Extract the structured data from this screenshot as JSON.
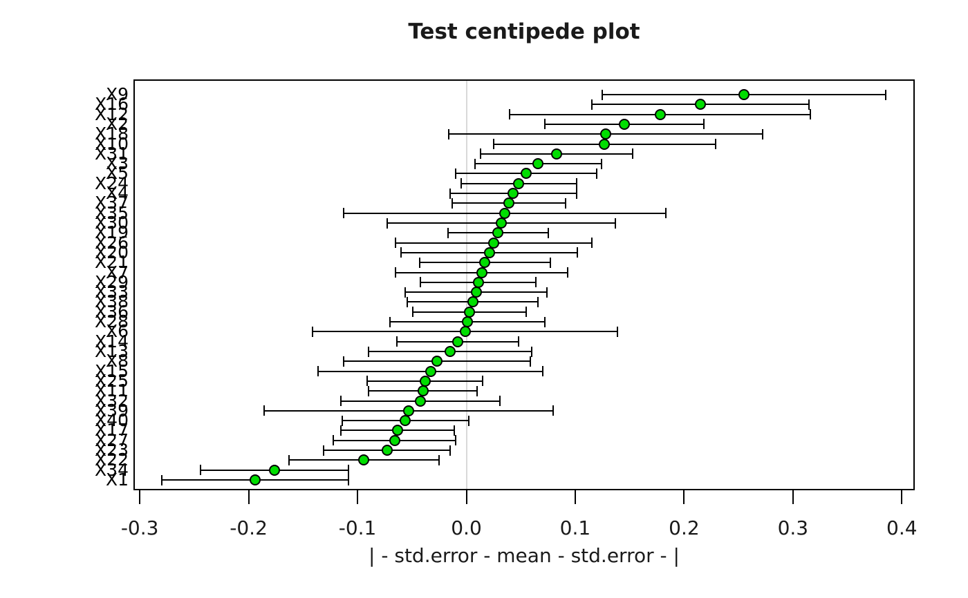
{
  "figure": {
    "title": "Test centipede plot"
  },
  "chart_data": {
    "type": "scatter",
    "subtype": "centipede-plot-means-with-error-bars",
    "title": "Test centipede plot",
    "xlabel": "| - std.error - mean - std.error - |",
    "ylabel": "",
    "xlim": [
      -0.306,
      0.412
    ],
    "x_tick_values": [
      -0.3,
      -0.2,
      -0.1,
      0.0,
      0.1,
      0.2,
      0.3,
      0.4
    ],
    "x_tick_labels": [
      "-0.3",
      "-0.2",
      "-0.1",
      "0.0",
      "0.1",
      "0.2",
      "0.3",
      "0.4"
    ],
    "grid": {
      "vertical_line_at_zero": true,
      "horizontal": false
    },
    "legend": {
      "shown": false
    },
    "colors": {
      "point_fill": "#00dd00",
      "point_stroke": "#000000",
      "error_bar": "#000000",
      "zero_line": "#d9d9d9",
      "text": "#000000"
    },
    "categories": [
      "X9",
      "X16",
      "X12",
      "X2",
      "X18",
      "X10",
      "X31",
      "X3",
      "X5",
      "X24",
      "X4",
      "X37",
      "X35",
      "X30",
      "X19",
      "X26",
      "X20",
      "X21",
      "X7",
      "X29",
      "X33",
      "X38",
      "X36",
      "X28",
      "X6",
      "X14",
      "X13",
      "X8",
      "X15",
      "X25",
      "X11",
      "X32",
      "X39",
      "X40",
      "X17",
      "X27",
      "X23",
      "X22",
      "X34",
      "X1"
    ],
    "series": [
      {
        "name": "mean",
        "values": [
          0.255,
          0.215,
          0.178,
          0.145,
          0.128,
          0.127,
          0.083,
          0.066,
          0.055,
          0.048,
          0.043,
          0.039,
          0.035,
          0.032,
          0.029,
          0.025,
          0.021,
          0.017,
          0.014,
          0.011,
          0.009,
          0.006,
          0.003,
          0.001,
          -0.001,
          -0.008,
          -0.015,
          -0.027,
          -0.033,
          -0.038,
          -0.04,
          -0.042,
          -0.053,
          -0.056,
          -0.063,
          -0.066,
          -0.073,
          -0.094,
          -0.176,
          -0.194
        ]
      },
      {
        "name": "std.error",
        "values": [
          0.13,
          0.1,
          0.138,
          0.073,
          0.144,
          0.102,
          0.07,
          0.058,
          0.065,
          0.053,
          0.058,
          0.052,
          0.148,
          0.105,
          0.046,
          0.09,
          0.081,
          0.06,
          0.079,
          0.053,
          0.065,
          0.06,
          0.052,
          0.071,
          0.14,
          0.056,
          0.075,
          0.086,
          0.103,
          0.053,
          0.05,
          0.073,
          0.133,
          0.058,
          0.052,
          0.056,
          0.058,
          0.069,
          0.068,
          0.086
        ]
      }
    ]
  }
}
